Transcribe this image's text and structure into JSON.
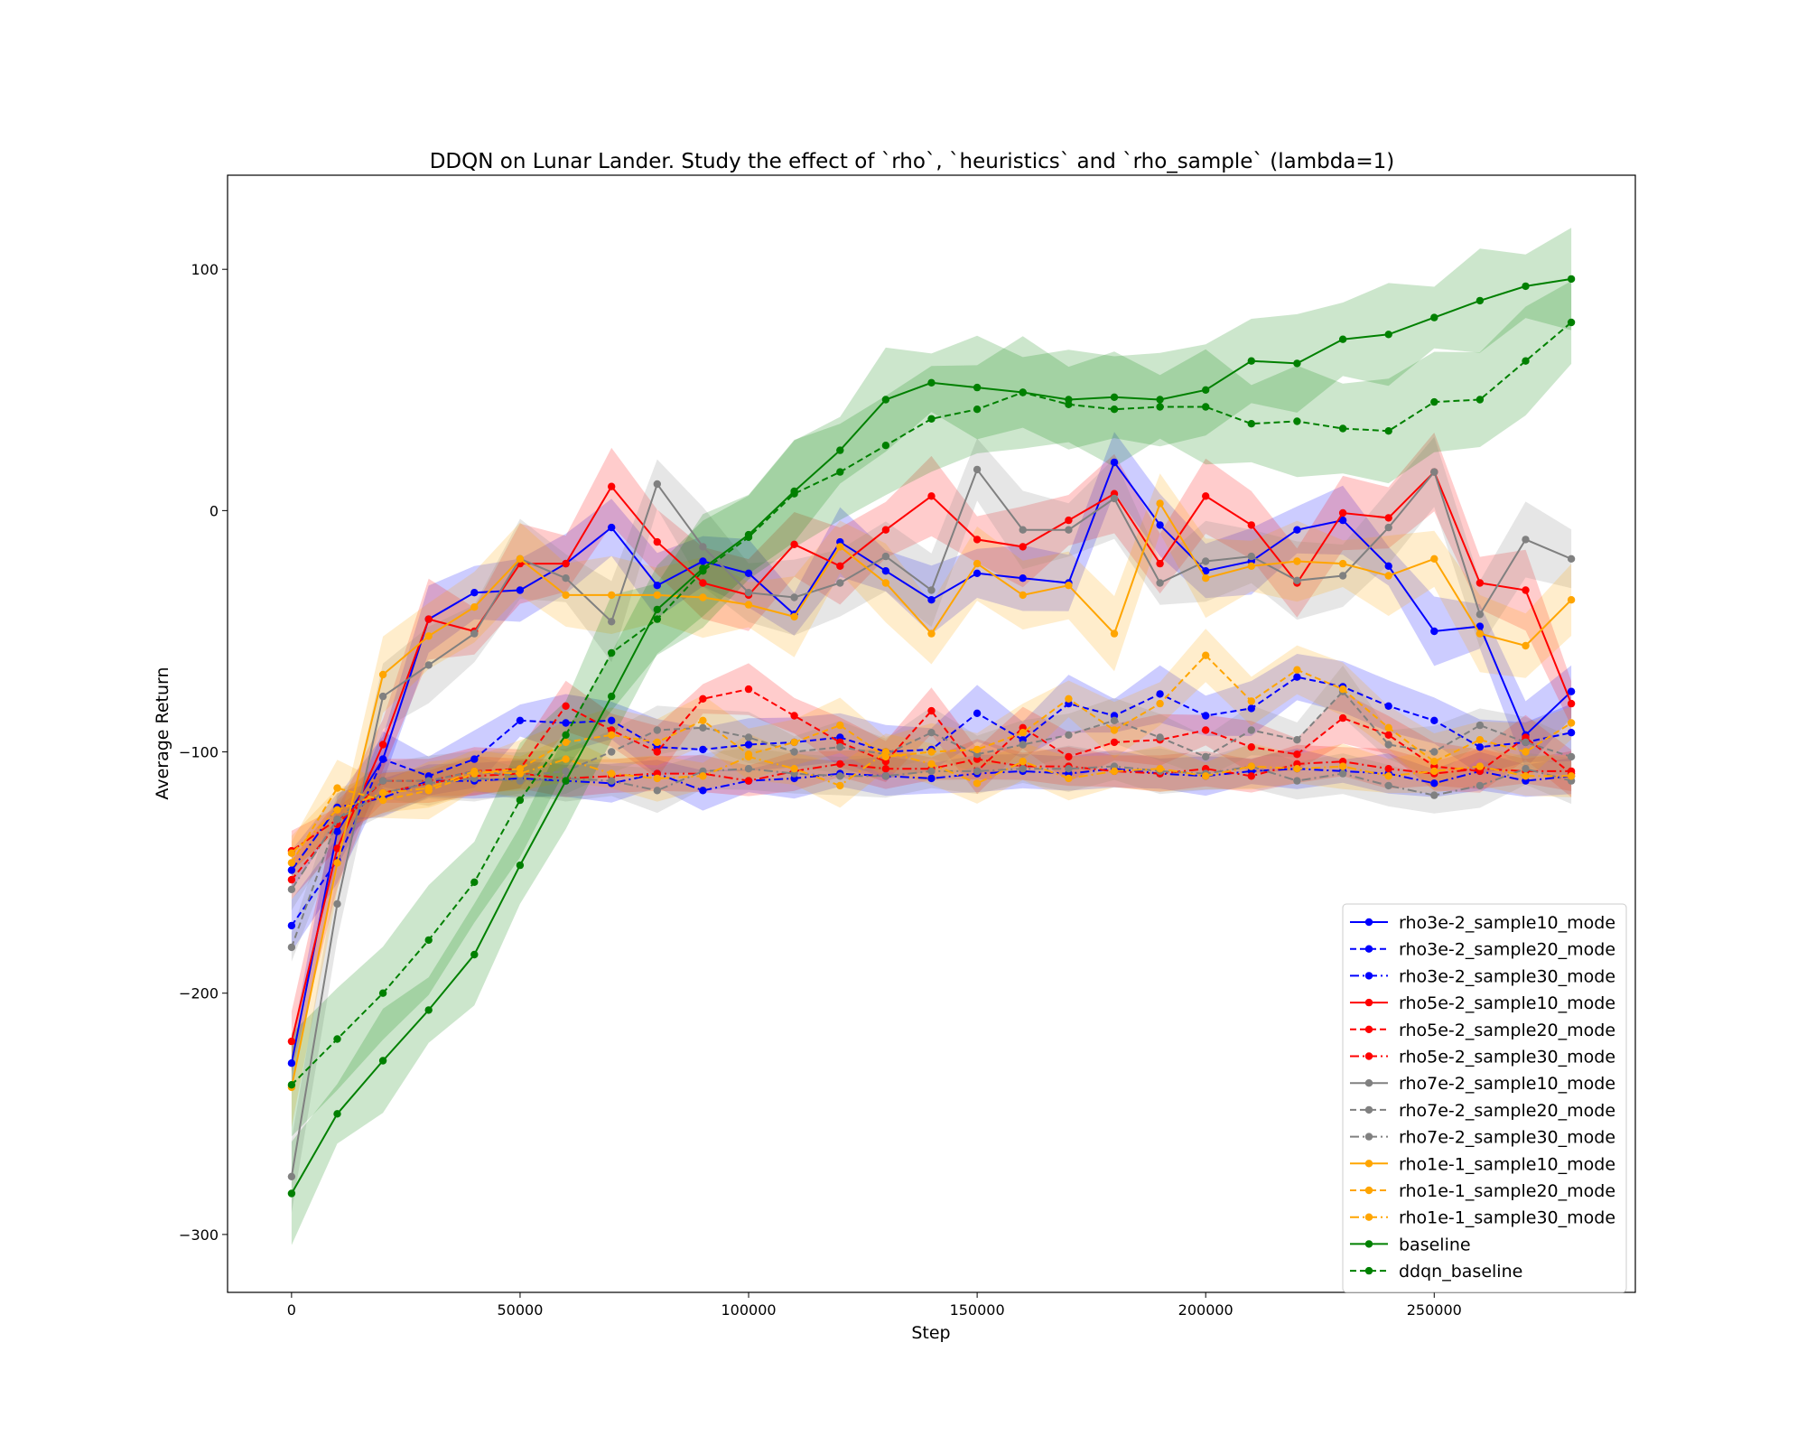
{
  "chart_data": {
    "type": "line",
    "title": "DDQN on Lunar Lander. Study the effect of `rho`, `heuristics` and `rho_sample` (lambda=1)",
    "xlabel": "Step",
    "ylabel": "Average Return",
    "xlim": [
      -14000,
      294000
    ],
    "ylim": [
      -324,
      139
    ],
    "xticks": [
      0,
      50000,
      100000,
      150000,
      200000,
      250000
    ],
    "xtick_labels": [
      "0",
      "50000",
      "100000",
      "150000",
      "200000",
      "250000"
    ],
    "yticks": [
      -300,
      -200,
      -100,
      0,
      100
    ],
    "ytick_labels": [
      "−300",
      "−200",
      "−100",
      "0",
      "100"
    ],
    "grid": false,
    "legend_position": "lower-right",
    "x": [
      0,
      10000,
      20000,
      30000,
      40000,
      50000,
      60000,
      70000,
      80000,
      90000,
      100000,
      110000,
      120000,
      130000,
      140000,
      150000,
      160000,
      170000,
      180000,
      190000,
      200000,
      210000,
      220000,
      230000,
      240000,
      250000,
      260000,
      270000,
      280000
    ],
    "series": [
      {
        "name": "rho3e-2_sample10_mode",
        "color": "#0000ff",
        "dash": "solid",
        "band": 12,
        "values": [
          -229,
          -133,
          -103,
          -45,
          -34,
          -33,
          -22,
          -7,
          -31,
          -21,
          -26,
          -43,
          -13,
          -25,
          -37,
          -26,
          -28,
          -30,
          20,
          -6,
          -25,
          -21,
          -8,
          -4,
          -23,
          -50,
          -48,
          -93,
          -75
        ]
      },
      {
        "name": "rho3e-2_sample20_mode",
        "color": "#0000ff",
        "dash": "dashed",
        "band": 10,
        "values": [
          -172,
          -145,
          -103,
          -110,
          -103,
          -87,
          -88,
          -87,
          -98,
          -99,
          -97,
          -96,
          -94,
          -100,
          -99,
          -84,
          -95,
          -80,
          -85,
          -76,
          -85,
          -82,
          -69,
          -73,
          -81,
          -87,
          -98,
          -96,
          -92
        ]
      },
      {
        "name": "rho3e-2_sample30_mode",
        "color": "#0000ff",
        "dash": "dashdot",
        "band": 7,
        "values": [
          -149,
          -123,
          -119,
          -112,
          -112,
          -111,
          -112,
          -113,
          -109,
          -116,
          -112,
          -111,
          -109,
          -110,
          -111,
          -109,
          -108,
          -109,
          -107,
          -109,
          -110,
          -108,
          -107,
          -108,
          -109,
          -113,
          -108,
          -112,
          -110
        ]
      },
      {
        "name": "rho5e-2_sample10_mode",
        "color": "#ff0000",
        "dash": "solid",
        "band": 14,
        "values": [
          -220,
          -140,
          -97,
          -45,
          -50,
          -22,
          -22,
          10,
          -13,
          -30,
          -35,
          -14,
          -23,
          -8,
          6,
          -12,
          -15,
          -4,
          7,
          -22,
          6,
          -6,
          -30,
          -1,
          -3,
          16,
          -30,
          -33,
          -80
        ]
      },
      {
        "name": "rho5e-2_sample20_mode",
        "color": "#ff0000",
        "dash": "dashed",
        "band": 9,
        "values": [
          -153,
          -130,
          -112,
          -112,
          -108,
          -107,
          -81,
          -91,
          -100,
          -78,
          -74,
          -85,
          -96,
          -104,
          -83,
          -108,
          -90,
          -102,
          -96,
          -95,
          -91,
          -98,
          -101,
          -86,
          -93,
          -106,
          -108,
          -94,
          -109
        ]
      },
      {
        "name": "rho5e-2_sample30_mode",
        "color": "#ff0000",
        "dash": "dashdot",
        "band": 7,
        "values": [
          -141,
          -128,
          -117,
          -113,
          -110,
          -109,
          -111,
          -110,
          -109,
          -109,
          -112,
          -108,
          -105,
          -107,
          -107,
          -103,
          -106,
          -106,
          -108,
          -109,
          -107,
          -110,
          -105,
          -104,
          -107,
          -109,
          -107,
          -108,
          -108
        ]
      },
      {
        "name": "rho7e-2_sample10_mode",
        "color": "#808080",
        "dash": "solid",
        "band": 14,
        "values": [
          -276,
          -163,
          -77,
          -64,
          -51,
          -20,
          -28,
          -46,
          11,
          -15,
          -34,
          -36,
          -30,
          -19,
          -33,
          17,
          -8,
          -8,
          5,
          -30,
          -21,
          -19,
          -29,
          -27,
          -7,
          16,
          -43,
          -12,
          -20
        ]
      },
      {
        "name": "rho7e-2_sample20_mode",
        "color": "#808080",
        "dash": "dashed",
        "band": 9,
        "values": [
          -181,
          -128,
          -112,
          -112,
          -108,
          -110,
          -108,
          -100,
          -91,
          -90,
          -94,
          -100,
          -98,
          -101,
          -92,
          -101,
          -97,
          -93,
          -87,
          -94,
          -102,
          -91,
          -95,
          -75,
          -97,
          -100,
          -89,
          -96,
          -102
        ]
      },
      {
        "name": "rho7e-2_sample30_mode",
        "color": "#808080",
        "dash": "dashdot",
        "band": 8,
        "values": [
          -157,
          -128,
          -117,
          -113,
          -111,
          -112,
          -111,
          -112,
          -116,
          -108,
          -107,
          -109,
          -110,
          -110,
          -108,
          -108,
          -107,
          -107,
          -106,
          -108,
          -109,
          -106,
          -112,
          -109,
          -114,
          -118,
          -114,
          -107,
          -112
        ]
      },
      {
        "name": "rho1e-1_sample10_mode",
        "color": "#ffa500",
        "dash": "solid",
        "band": 14,
        "values": [
          -239,
          -146,
          -68,
          -52,
          -40,
          -20,
          -35,
          -35,
          -35,
          -36,
          -39,
          -44,
          -15,
          -30,
          -51,
          -22,
          -35,
          -31,
          -51,
          3,
          -28,
          -23,
          -21,
          -22,
          -27,
          -20,
          -51,
          -56,
          -37
        ]
      },
      {
        "name": "rho1e-1_sample20_mode",
        "color": "#ffa500",
        "dash": "dashed",
        "band": 10,
        "values": [
          -146,
          -115,
          -120,
          -116,
          -109,
          -107,
          -96,
          -93,
          -96,
          -87,
          -101,
          -96,
          -89,
          -102,
          -100,
          -99,
          -92,
          -78,
          -91,
          -80,
          -60,
          -79,
          -66,
          -74,
          -90,
          -104,
          -95,
          -100,
          -88
        ]
      },
      {
        "name": "rho1e-1_sample30_mode",
        "color": "#ffa500",
        "dash": "dashdot",
        "band": 8,
        "values": [
          -142,
          -124,
          -117,
          -115,
          -108,
          -109,
          -103,
          -109,
          -111,
          -110,
          -102,
          -107,
          -114,
          -100,
          -105,
          -113,
          -104,
          -111,
          -108,
          -107,
          -110,
          -106,
          -107,
          -106,
          -110,
          -108,
          -106,
          -110,
          -110
        ]
      },
      {
        "name": "baseline",
        "color": "#008000",
        "dash": "solid",
        "band": 18,
        "values": [
          -283,
          -250,
          -228,
          -207,
          -184,
          -147,
          -112,
          -77,
          -41,
          -24,
          -10,
          8,
          25,
          46,
          53,
          51,
          49,
          46,
          47,
          46,
          50,
          62,
          61,
          71,
          73,
          80,
          87,
          93,
          96
        ]
      },
      {
        "name": "ddqn_baseline",
        "color": "#008000",
        "dash": "dashed",
        "band": 20,
        "values": [
          -238,
          -219,
          -200,
          -178,
          -154,
          -120,
          -93,
          -59,
          -45,
          -25,
          -11,
          7,
          16,
          27,
          38,
          42,
          49,
          44,
          42,
          43,
          43,
          36,
          37,
          34,
          33,
          45,
          46,
          62,
          78
        ]
      }
    ]
  }
}
